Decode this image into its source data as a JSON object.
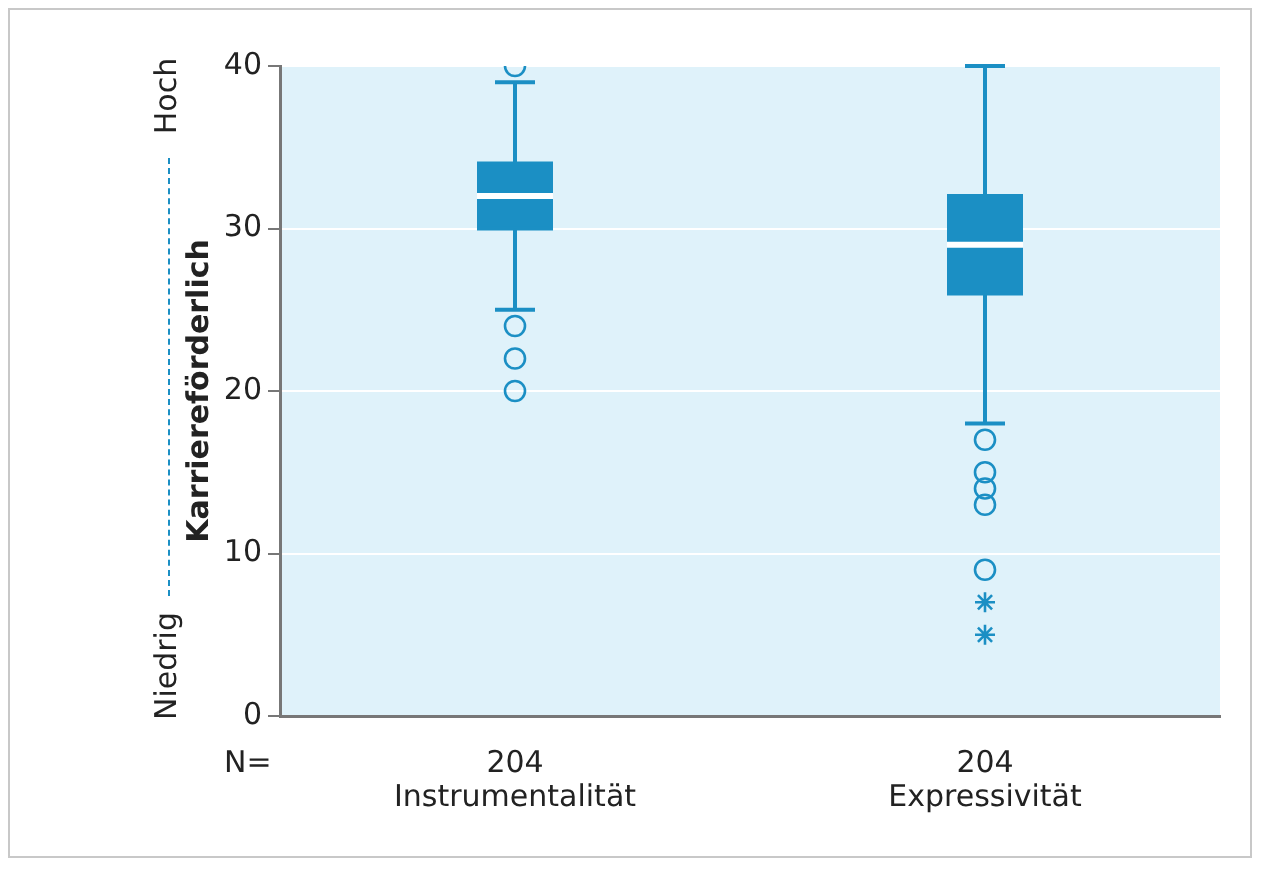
{
  "chart_data": {
    "type": "box",
    "ylabel": "Karriereförderlich",
    "categories": [
      "Instrumentalität",
      "Expressivität"
    ],
    "series": [
      {
        "color": "#1b8fc4",
        "marker": "circle",
        "boxes": [
          {
            "low": 25,
            "q1": 30,
            "median": 32,
            "q3": 34,
            "high": 39,
            "outliers": [
              40,
              24,
              22,
              20
            ]
          },
          {
            "low": 18,
            "q1": 26,
            "median": 29,
            "q3": 32,
            "high": 40,
            "outliers": [
              17,
              15,
              14,
              13,
              9
            ]
          }
        ]
      },
      {
        "type": "scatter",
        "color": "#1b8fc4",
        "marker": "cross",
        "x": [
          "Expressivität",
          "Expressivität"
        ],
        "values": [
          7,
          5
        ]
      }
    ],
    "ylim": [
      0,
      40
    ],
    "yticks": [
      0,
      10,
      20,
      30,
      40
    ],
    "grid": "y",
    "legend": false,
    "annotations": [
      "Niedrig",
      "Hoch",
      "N=",
      "204",
      "204"
    ]
  }
}
